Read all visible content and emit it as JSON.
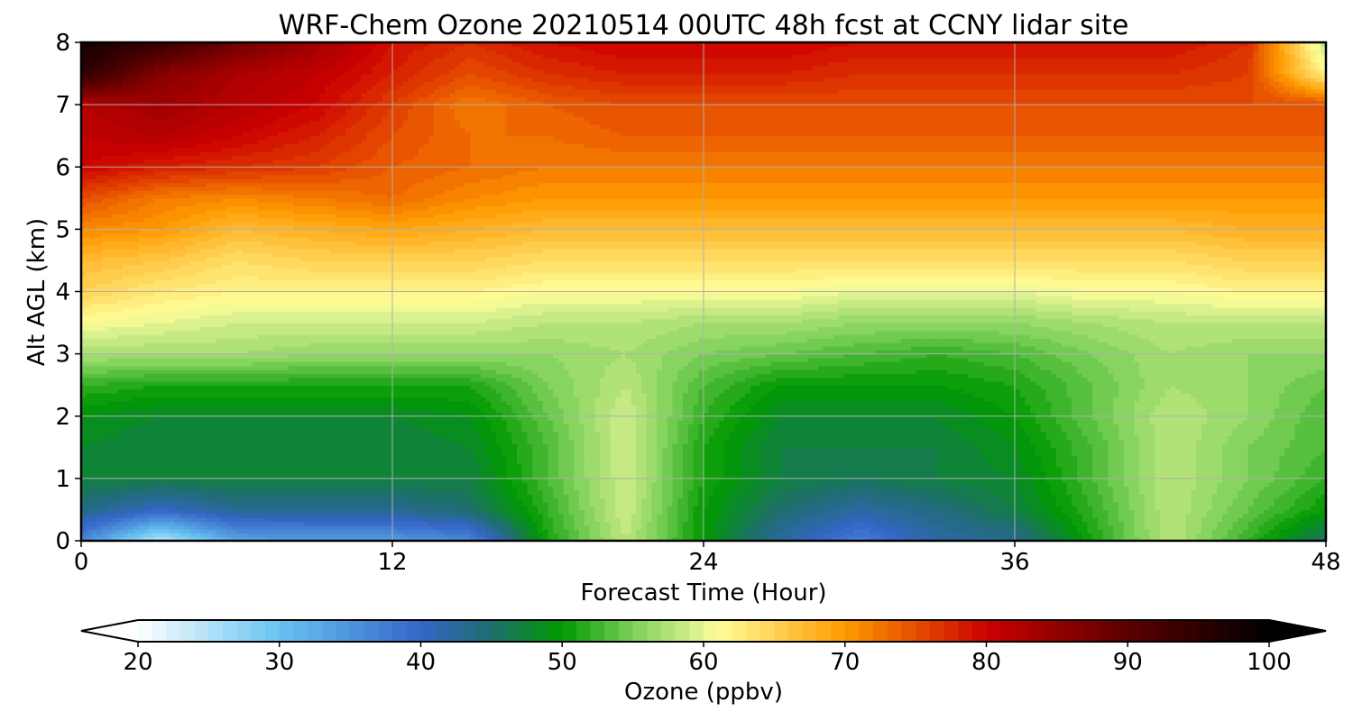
{
  "chart_data": {
    "type": "heatmap",
    "plot_kind": "filled contour (time-height cross section)",
    "title": "WRF-Chem Ozone  20210514 00UTC 48h fcst at CCNY lidar site",
    "xlabel": "Forecast Time (Hour)",
    "ylabel": "Alt AGL (km)",
    "xlim": [
      0,
      48
    ],
    "ylim": [
      0,
      8
    ],
    "xticks": [
      0,
      12,
      24,
      36,
      48
    ],
    "yticks": [
      0,
      1,
      2,
      3,
      4,
      5,
      6,
      7,
      8
    ],
    "grid": true,
    "z_units": "ppbv",
    "x": [
      0,
      3,
      6,
      9,
      12,
      15,
      18,
      21,
      24,
      27,
      30,
      33,
      36,
      39,
      42,
      45,
      48
    ],
    "y": [
      0,
      0.5,
      1,
      1.5,
      2,
      2.5,
      3,
      3.5,
      4,
      4.5,
      5,
      5.5,
      6,
      6.5,
      7,
      7.5,
      8
    ],
    "z": [
      [
        36,
        24,
        33,
        34,
        34,
        36,
        51,
        58,
        50,
        42,
        37,
        42,
        43,
        51,
        58,
        52,
        45
      ],
      [
        44,
        40,
        43,
        43,
        43,
        45,
        52,
        59,
        50,
        45,
        42,
        44,
        47,
        52,
        58,
        54,
        50
      ],
      [
        47,
        47,
        47,
        47,
        47,
        47,
        53,
        59,
        51,
        47,
        46,
        47,
        48,
        53,
        58,
        55,
        52
      ],
      [
        48,
        47,
        47,
        47,
        47,
        48,
        53,
        59,
        51,
        47,
        47,
        47,
        49,
        53,
        58,
        55,
        53
      ],
      [
        49,
        48,
        48,
        48,
        48,
        49,
        54,
        59,
        52,
        48,
        48,
        48,
        50,
        54,
        58,
        56,
        53
      ],
      [
        52,
        51,
        51,
        51,
        51,
        51,
        55,
        58,
        53,
        50,
        50,
        50,
        51,
        54,
        57,
        56,
        54
      ],
      [
        57,
        57,
        57,
        56,
        56,
        56,
        56,
        57,
        55,
        54,
        53,
        52,
        53,
        55,
        57,
        56,
        56
      ],
      [
        61,
        60,
        59,
        59,
        59,
        59,
        58,
        58,
        57,
        57,
        56,
        56,
        56,
        57,
        58,
        58,
        58
      ],
      [
        65,
        63,
        62,
        62,
        62,
        62,
        61,
        61,
        61,
        61,
        60,
        60,
        60,
        61,
        61,
        62,
        62
      ],
      [
        67,
        66,
        64,
        65,
        65,
        65,
        64,
        64,
        64,
        64,
        64,
        64,
        64,
        64,
        64,
        65,
        65
      ],
      [
        71,
        70,
        67,
        68,
        69,
        68,
        67,
        67,
        67,
        67,
        67,
        67,
        67,
        67,
        67,
        68,
        68
      ],
      [
        75,
        72,
        71,
        72,
        73,
        71,
        70,
        70,
        70,
        70,
        70,
        70,
        70,
        70,
        70,
        70,
        70
      ],
      [
        80,
        78,
        77,
        76,
        74,
        73,
        72,
        72,
        72,
        72,
        72,
        72,
        72,
        72,
        72,
        72,
        72
      ],
      [
        81,
        82,
        80,
        78,
        75,
        73,
        73,
        74,
        74,
        74,
        74,
        74,
        74,
        74,
        74,
        74,
        74
      ],
      [
        82,
        84,
        82,
        80,
        76,
        72,
        74,
        75,
        75,
        75,
        75,
        75,
        75,
        75,
        75,
        75,
        75
      ],
      [
        95,
        86,
        83,
        81,
        78,
        75,
        77,
        78,
        78,
        78,
        77,
        77,
        77,
        77,
        77,
        76,
        62
      ],
      [
        98,
        94,
        88,
        84,
        79,
        77,
        79,
        80,
        80,
        80,
        79,
        79,
        79,
        79,
        79,
        77,
        58
      ]
    ],
    "colorbar": {
      "label": "Ozone  (ppbv)",
      "min": 20,
      "max": 100,
      "ticks": [
        20,
        30,
        40,
        50,
        60,
        70,
        80,
        90,
        100
      ],
      "extend": "both",
      "orientation": "horizontal",
      "step": 1,
      "stops": [
        {
          "value": 20,
          "color": "#ffffff"
        },
        {
          "value": 30,
          "color": "#67c3f2"
        },
        {
          "value": 40,
          "color": "#3565c7"
        },
        {
          "value": 45,
          "color": "#1e6e6e"
        },
        {
          "value": 50,
          "color": "#009a00"
        },
        {
          "value": 55,
          "color": "#7ed05a"
        },
        {
          "value": 59,
          "color": "#cfec8a"
        },
        {
          "value": 61,
          "color": "#ffff99"
        },
        {
          "value": 70,
          "color": "#ff9a00"
        },
        {
          "value": 80,
          "color": "#cc0000"
        },
        {
          "value": 90,
          "color": "#5a0000"
        },
        {
          "value": 100,
          "color": "#000000"
        }
      ]
    }
  }
}
